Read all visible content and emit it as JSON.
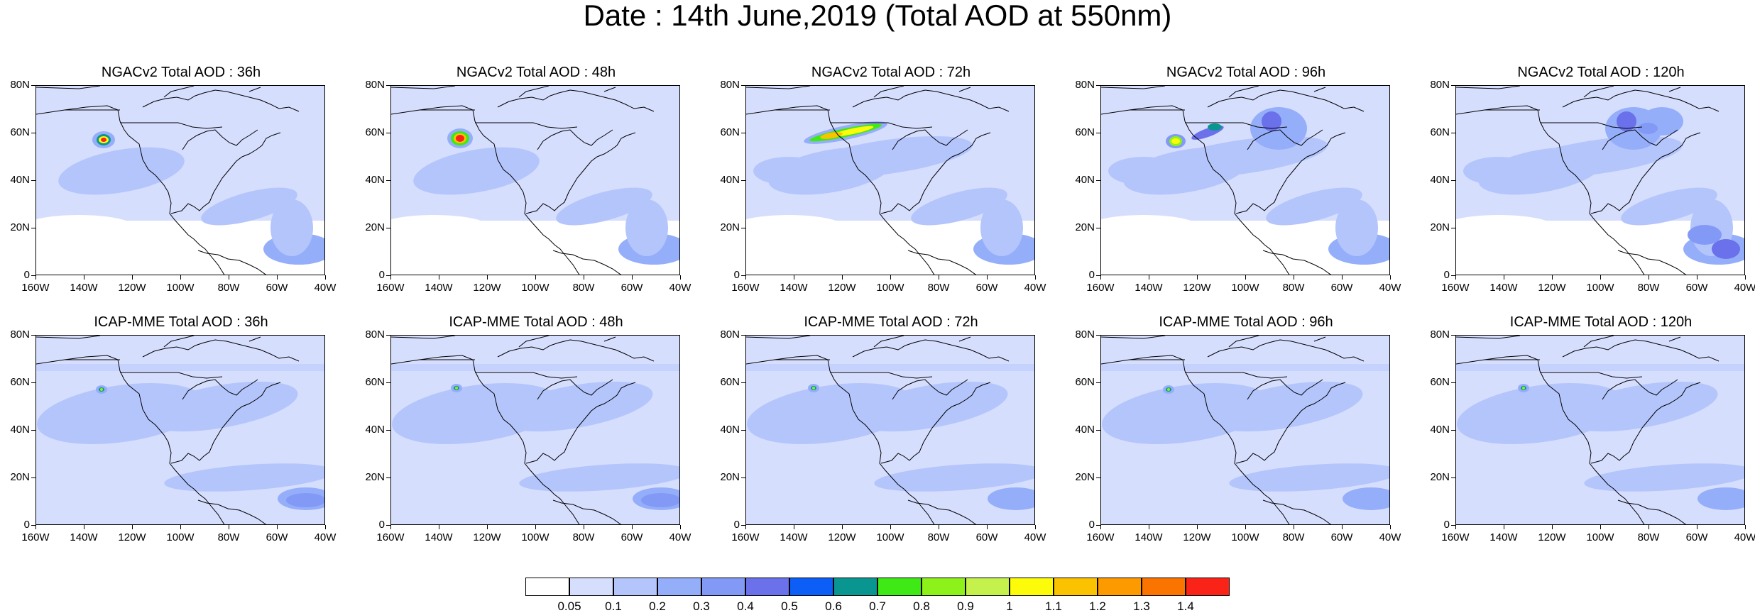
{
  "title": "Date : 14th June,2019 (Total AOD at 550nm)",
  "x_ticks": [
    "160W",
    "140W",
    "120W",
    "100W",
    "80W",
    "60W",
    "40W"
  ],
  "y_ticks": [
    "80N",
    "60N",
    "40N",
    "20N",
    "0"
  ],
  "panels": [
    {
      "title": "NGACv2 Total AOD : 36h"
    },
    {
      "title": "NGACv2 Total AOD : 48h"
    },
    {
      "title": "NGACv2 Total AOD : 72h"
    },
    {
      "title": "NGACv2 Total AOD : 96h"
    },
    {
      "title": "NGACv2 Total AOD : 120h"
    },
    {
      "title": "ICAP-MME Total AOD : 36h"
    },
    {
      "title": "ICAP-MME Total AOD : 48h"
    },
    {
      "title": "ICAP-MME Total AOD : 72h"
    },
    {
      "title": "ICAP-MME Total AOD : 96h"
    },
    {
      "title": "ICAP-MME Total AOD : 120h"
    }
  ],
  "colorbar": {
    "colors": [
      "#ffffff",
      "#d6defe",
      "#b4c5fc",
      "#95aefa",
      "#8399f6",
      "#6a71ea",
      "#0c5ef6",
      "#0a9690",
      "#3fe916",
      "#8cf21a",
      "#c4f14b",
      "#fcfb09",
      "#fbc200",
      "#fc9a00",
      "#fc7400",
      "#f92417"
    ],
    "labels": [
      "0.05",
      "0.1",
      "0.2",
      "0.3",
      "0.4",
      "0.5",
      "0.6",
      "0.7",
      "0.8",
      "0.9",
      "1",
      "1.1",
      "1.2",
      "1.3",
      "1.4"
    ]
  },
  "colors": {
    "background_aod": "#d6defe",
    "medium_aod": "#b4c5fc",
    "coastline": "#000000"
  }
}
